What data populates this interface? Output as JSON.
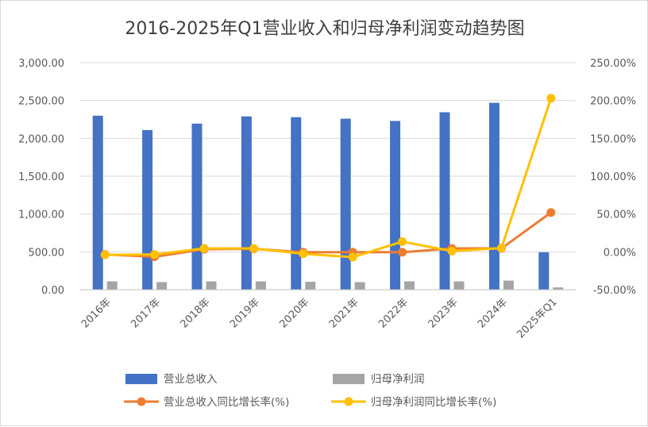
{
  "chart_data": {
    "type": "bar",
    "title": "2016-2025年Q1营业收入和归母净利润变动趋势图",
    "categories": [
      "2016年",
      "2017年",
      "2018年",
      "2019年",
      "2020年",
      "2021年",
      "2022年",
      "2023年",
      "2024年",
      "2025年Q1"
    ],
    "y_left": {
      "min": 0,
      "max": 3000,
      "step": 500,
      "tick_labels": [
        "0.00",
        "500.00",
        "1,000.00",
        "1,500.00",
        "2,000.00",
        "2,500.00",
        "3,000.00"
      ]
    },
    "y_right": {
      "min": -50,
      "max": 250,
      "step": 50,
      "tick_labels": [
        "-50.00%",
        "0.00%",
        "50.00%",
        "100.00%",
        "150.00%",
        "200.00%",
        "250.00%"
      ]
    },
    "gridlines": true,
    "legend_position": "bottom",
    "series": [
      {
        "name": "营业总收入",
        "kind": "bar",
        "axis": "left",
        "color": "#4472c4",
        "values": [
          2300,
          2110,
          2195,
          2290,
          2280,
          2260,
          2230,
          2345,
          2470,
          495
        ]
      },
      {
        "name": "归母净利润",
        "kind": "bar",
        "axis": "left",
        "color": "#a5a5a5",
        "values": [
          110,
          100,
          110,
          110,
          105,
          100,
          110,
          110,
          120,
          30
        ]
      },
      {
        "name": "营业总收入同比增长率(%)",
        "kind": "line",
        "axis": "right",
        "color": "#ed7d31",
        "values": [
          -3.5,
          -6.5,
          3.5,
          4.0,
          -0.5,
          -0.5,
          -0.5,
          4.5,
          4.5,
          52.0
        ]
      },
      {
        "name": "归母净利润同比增长率(%)",
        "kind": "line",
        "axis": "right",
        "color": "#ffc000",
        "values": [
          -4.0,
          -3.5,
          4.5,
          4.5,
          -2.5,
          -7.0,
          13.5,
          1.0,
          5.0,
          203.0
        ]
      }
    ]
  }
}
